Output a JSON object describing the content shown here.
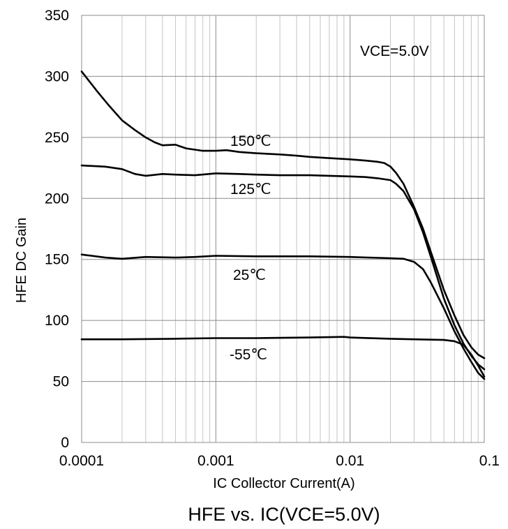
{
  "chart_data": {
    "type": "line",
    "caption": "HFE vs. IC(VCE=5.0V)",
    "xlabel": "IC Collector Current(A)",
    "ylabel": "HFE DC Gain",
    "xscale": "log",
    "xlim": [
      0.0001,
      0.1
    ],
    "ylim": [
      0,
      350
    ],
    "grid": true,
    "x_tick_labels": [
      "0.0001",
      "0.001",
      "0.01",
      "0.1"
    ],
    "y_tick_labels": [
      "0",
      "50",
      "100",
      "150",
      "200",
      "250",
      "300",
      "350"
    ],
    "annotation": "VCE=5.0V",
    "series": [
      {
        "name": "150℃",
        "points": [
          [
            0.0001,
            304
          ],
          [
            0.00013,
            288
          ],
          [
            0.00016,
            276
          ],
          [
            0.0002,
            264
          ],
          [
            0.00025,
            256
          ],
          [
            0.0003,
            250
          ],
          [
            0.00035,
            246
          ],
          [
            0.0004,
            243.5
          ],
          [
            0.0005,
            244
          ],
          [
            0.0006,
            241
          ],
          [
            0.0008,
            239
          ],
          [
            0.001,
            239
          ],
          [
            0.0012,
            239.5
          ],
          [
            0.0015,
            238
          ],
          [
            0.002,
            237
          ],
          [
            0.003,
            236
          ],
          [
            0.004,
            235
          ],
          [
            0.005,
            234
          ],
          [
            0.007,
            233
          ],
          [
            0.01,
            232
          ],
          [
            0.013,
            231
          ],
          [
            0.016,
            230
          ],
          [
            0.018,
            229
          ],
          [
            0.02,
            226
          ],
          [
            0.022,
            221
          ],
          [
            0.025,
            212
          ],
          [
            0.03,
            193
          ],
          [
            0.035,
            175
          ],
          [
            0.04,
            156
          ],
          [
            0.05,
            125
          ],
          [
            0.06,
            104
          ],
          [
            0.07,
            88
          ],
          [
            0.08,
            78
          ],
          [
            0.09,
            72
          ],
          [
            0.1,
            69
          ]
        ]
      },
      {
        "name": "125℃",
        "points": [
          [
            0.0001,
            227
          ],
          [
            0.00015,
            226
          ],
          [
            0.0002,
            224
          ],
          [
            0.00025,
            220
          ],
          [
            0.0003,
            218.5
          ],
          [
            0.0004,
            220
          ],
          [
            0.0005,
            219.5
          ],
          [
            0.0007,
            219
          ],
          [
            0.001,
            220.5
          ],
          [
            0.0015,
            220
          ],
          [
            0.002,
            219.5
          ],
          [
            0.003,
            219
          ],
          [
            0.005,
            219
          ],
          [
            0.007,
            218.5
          ],
          [
            0.01,
            218
          ],
          [
            0.013,
            217.5
          ],
          [
            0.016,
            216.5
          ],
          [
            0.02,
            215
          ],
          [
            0.022,
            212
          ],
          [
            0.025,
            206
          ],
          [
            0.03,
            191
          ],
          [
            0.035,
            172
          ],
          [
            0.04,
            152
          ],
          [
            0.05,
            118
          ],
          [
            0.06,
            96
          ],
          [
            0.07,
            81
          ],
          [
            0.08,
            71
          ],
          [
            0.09,
            64
          ],
          [
            0.1,
            60
          ]
        ]
      },
      {
        "name": "25℃",
        "points": [
          [
            0.0001,
            154
          ],
          [
            0.00015,
            151.5
          ],
          [
            0.0002,
            150.5
          ],
          [
            0.0003,
            152
          ],
          [
            0.0005,
            151.5
          ],
          [
            0.0007,
            152
          ],
          [
            0.001,
            153
          ],
          [
            0.002,
            152.5
          ],
          [
            0.005,
            152.5
          ],
          [
            0.01,
            152
          ],
          [
            0.02,
            151
          ],
          [
            0.025,
            150.5
          ],
          [
            0.03,
            148
          ],
          [
            0.035,
            142
          ],
          [
            0.04,
            131
          ],
          [
            0.05,
            110
          ],
          [
            0.06,
            91
          ],
          [
            0.07,
            77
          ],
          [
            0.08,
            66
          ],
          [
            0.09,
            57
          ],
          [
            0.1,
            52
          ]
        ]
      },
      {
        "name": "-55℃",
        "points": [
          [
            0.0001,
            84.5
          ],
          [
            0.0002,
            84.5
          ],
          [
            0.0005,
            85
          ],
          [
            0.001,
            85.5
          ],
          [
            0.002,
            85.5
          ],
          [
            0.005,
            86
          ],
          [
            0.009,
            86.5
          ],
          [
            0.01,
            86
          ],
          [
            0.02,
            85
          ],
          [
            0.03,
            84.5
          ],
          [
            0.05,
            84
          ],
          [
            0.06,
            83
          ],
          [
            0.07,
            80
          ],
          [
            0.08,
            72
          ],
          [
            0.09,
            63
          ],
          [
            0.1,
            54
          ]
        ]
      }
    ]
  }
}
